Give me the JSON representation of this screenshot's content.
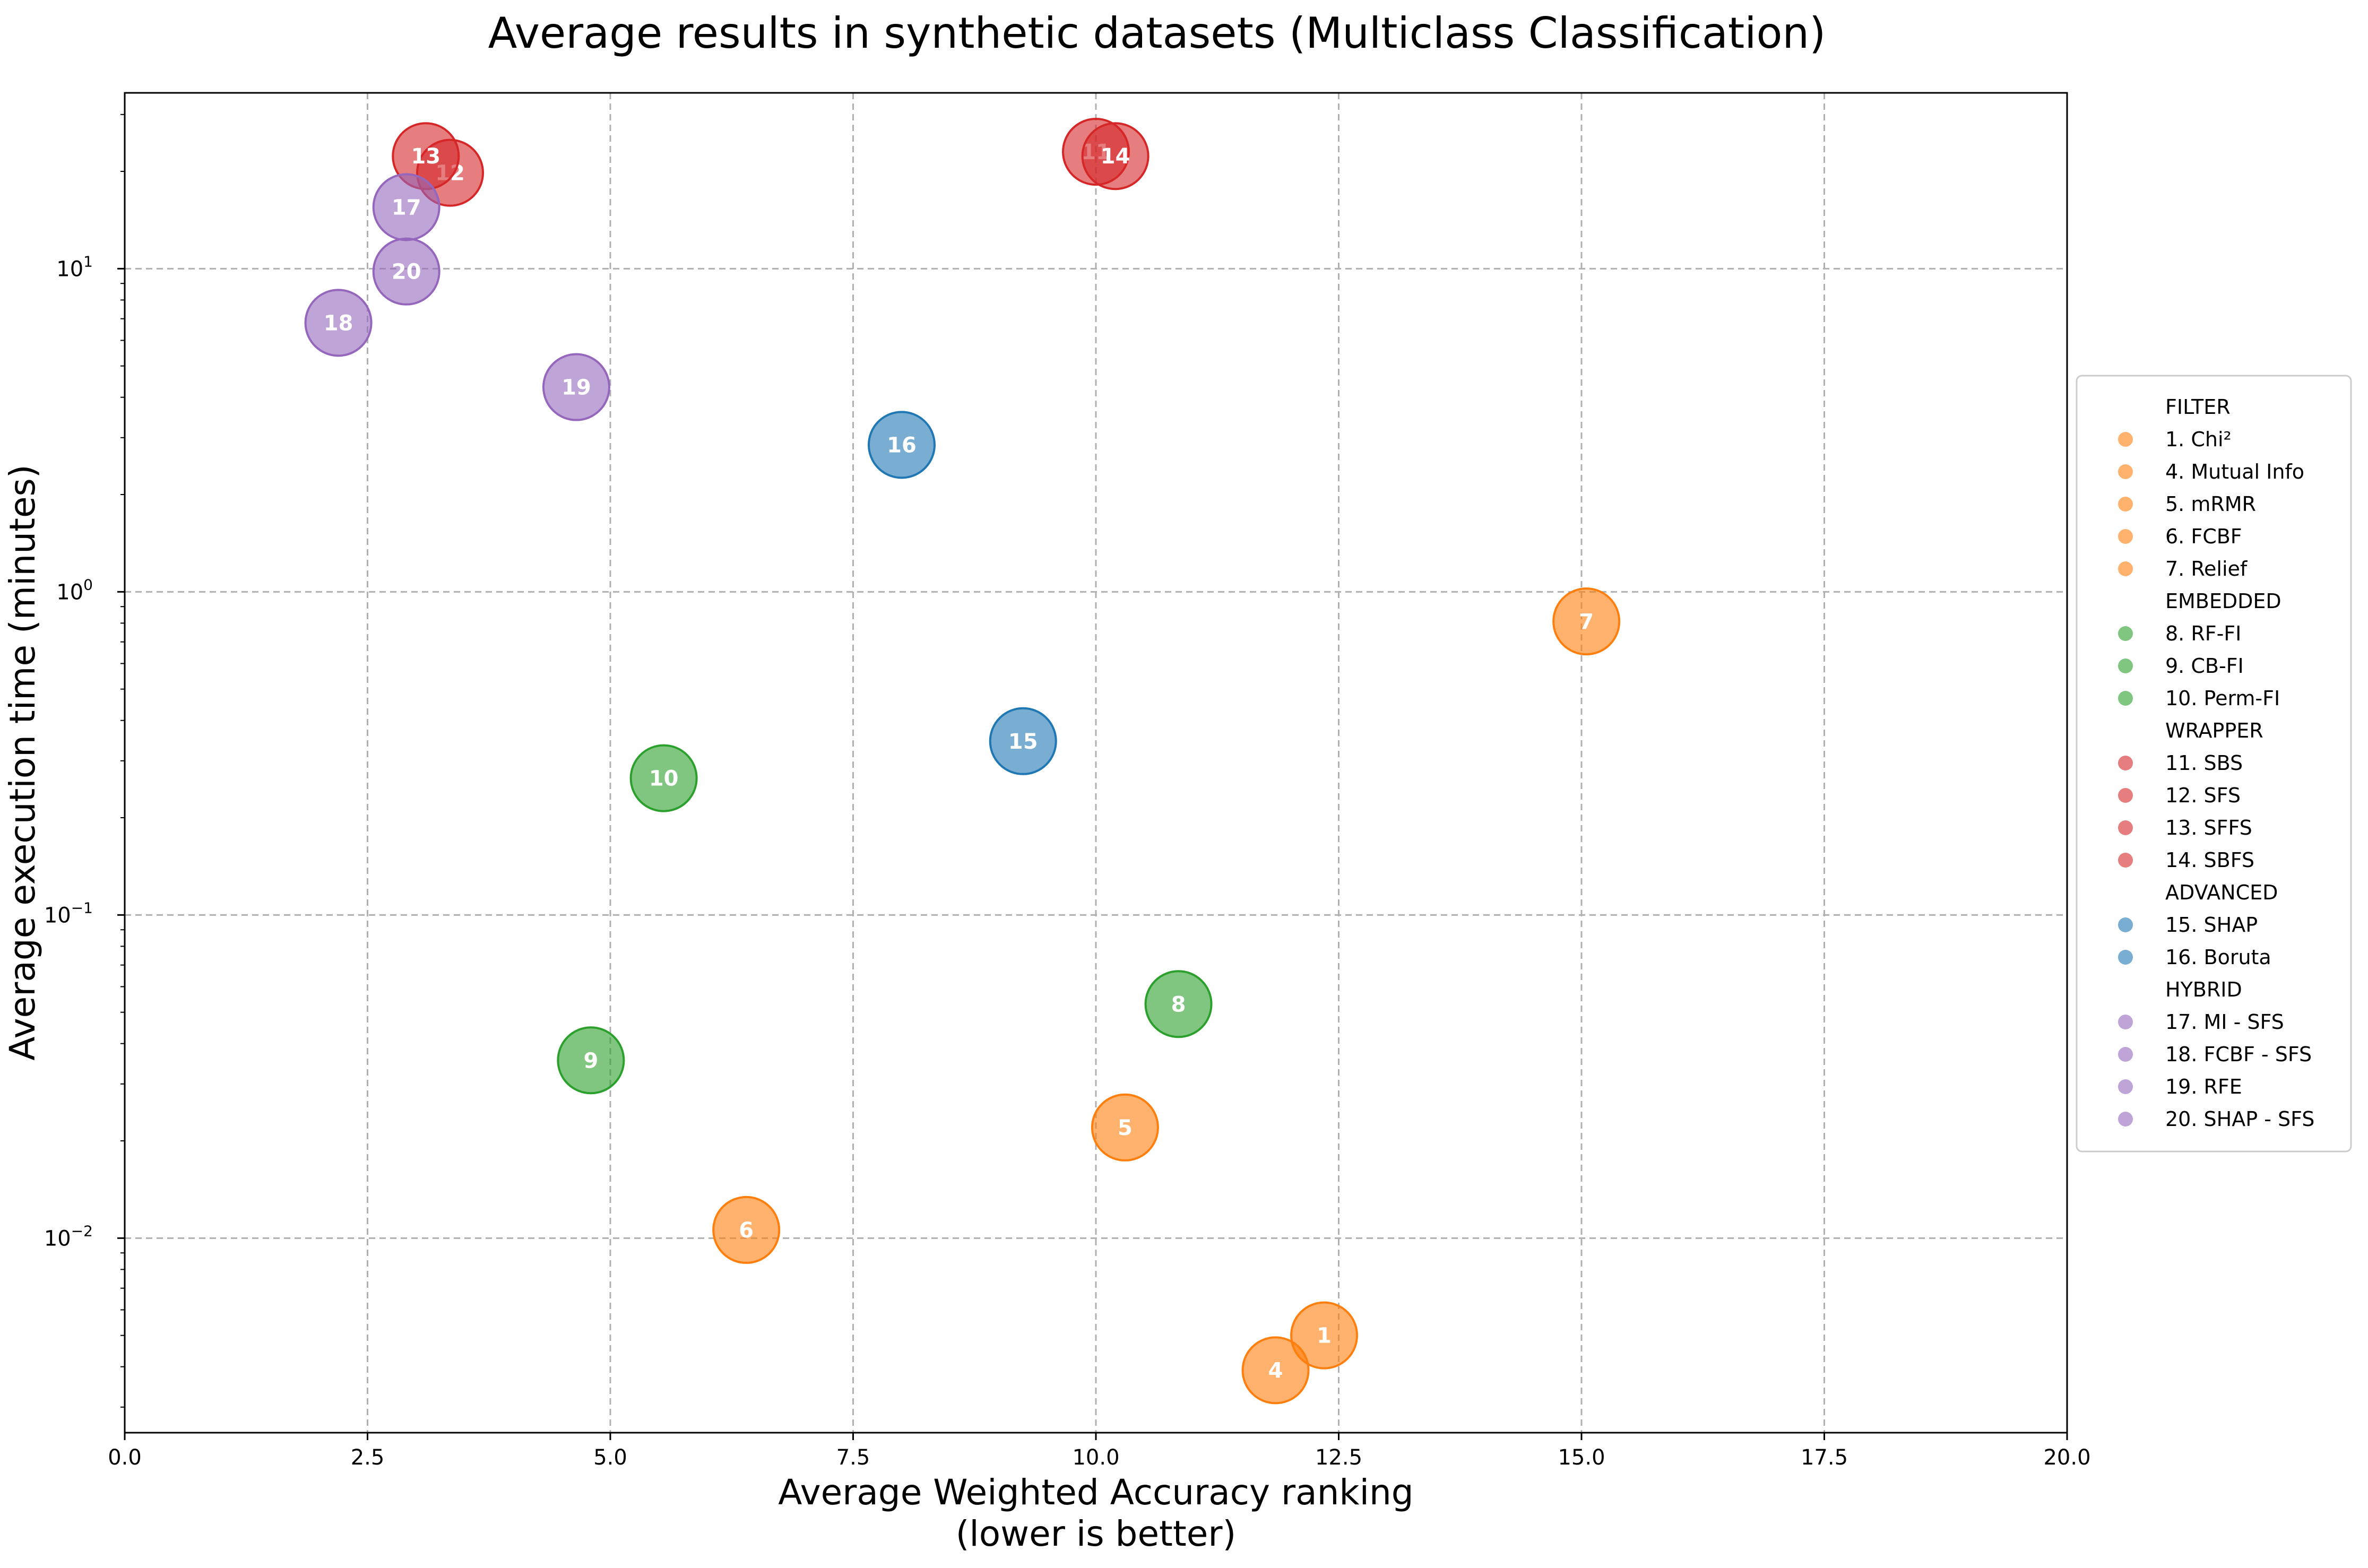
{
  "chart_data": {
    "type": "scatter",
    "title": "Average results in synthetic datasets (Multiclass Classification)",
    "xlabel_line1": "Average Weighted Accuracy ranking",
    "xlabel_line2": "(lower is better)",
    "ylabel": "Average execution time (minutes)",
    "xlim": [
      0,
      20
    ],
    "ylim": [
      0.0025,
      35
    ],
    "yscale": "log",
    "grid": true,
    "legend_position": "right",
    "x_ticks": [
      "0.0",
      "2.5",
      "5.0",
      "7.5",
      "10.0",
      "12.5",
      "15.0",
      "17.5",
      "20.0"
    ],
    "y_ticks": [
      {
        "base": "10",
        "exp": "−2",
        "value": 0.01
      },
      {
        "base": "10",
        "exp": "−1",
        "value": 0.1
      },
      {
        "base": "10",
        "exp": "0",
        "value": 1
      },
      {
        "base": "10",
        "exp": "1",
        "value": 10
      }
    ],
    "groups": [
      {
        "name": "FILTER",
        "color": "#ff7f0e"
      },
      {
        "name": "EMBEDDED",
        "color": "#2ca02c"
      },
      {
        "name": "WRAPPER",
        "color": "#d62728"
      },
      {
        "name": "ADVANCED",
        "color": "#1f77b4"
      },
      {
        "name": "HYBRID",
        "color": "#9467bd"
      }
    ],
    "series": [
      {
        "id": "1",
        "name": "1. Chi²",
        "group": "FILTER",
        "x": 12.35,
        "y": 0.005
      },
      {
        "id": "4",
        "name": "4. Mutual Info",
        "group": "FILTER",
        "x": 11.85,
        "y": 0.0039
      },
      {
        "id": "5",
        "name": "5. mRMR",
        "group": "FILTER",
        "x": 10.3,
        "y": 0.022
      },
      {
        "id": "6",
        "name": "6. FCBF",
        "group": "FILTER",
        "x": 6.4,
        "y": 0.0106
      },
      {
        "id": "7",
        "name": "7. Relief",
        "group": "FILTER",
        "x": 15.05,
        "y": 0.81
      },
      {
        "id": "8",
        "name": "8. RF-FI",
        "group": "EMBEDDED",
        "x": 10.85,
        "y": 0.053
      },
      {
        "id": "9",
        "name": "9. CB-FI",
        "group": "EMBEDDED",
        "x": 4.8,
        "y": 0.0355
      },
      {
        "id": "10",
        "name": "10. Perm-FI",
        "group": "EMBEDDED",
        "x": 5.55,
        "y": 0.265
      },
      {
        "id": "11",
        "name": "11. SBS",
        "group": "WRAPPER",
        "x": 10.0,
        "y": 23.0
      },
      {
        "id": "12",
        "name": "12. SFS",
        "group": "WRAPPER",
        "x": 3.35,
        "y": 19.8
      },
      {
        "id": "13",
        "name": "13. SFFS",
        "group": "WRAPPER",
        "x": 3.1,
        "y": 22.3
      },
      {
        "id": "14",
        "name": "14. SBFS",
        "group": "WRAPPER",
        "x": 10.2,
        "y": 22.3
      },
      {
        "id": "15",
        "name": "15. SHAP",
        "group": "ADVANCED",
        "x": 9.25,
        "y": 0.345
      },
      {
        "id": "16",
        "name": "16. Boruta",
        "group": "ADVANCED",
        "x": 8.0,
        "y": 2.85
      },
      {
        "id": "17",
        "name": "17. MI - SFS",
        "group": "HYBRID",
        "x": 2.9,
        "y": 15.5
      },
      {
        "id": "18",
        "name": "18. FCBF - SFS",
        "group": "HYBRID",
        "x": 2.2,
        "y": 6.8
      },
      {
        "id": "19",
        "name": "19. RFE",
        "group": "HYBRID",
        "x": 4.65,
        "y": 4.3
      },
      {
        "id": "20",
        "name": "20. SHAP - SFS",
        "group": "HYBRID",
        "x": 2.9,
        "y": 9.8
      }
    ]
  }
}
